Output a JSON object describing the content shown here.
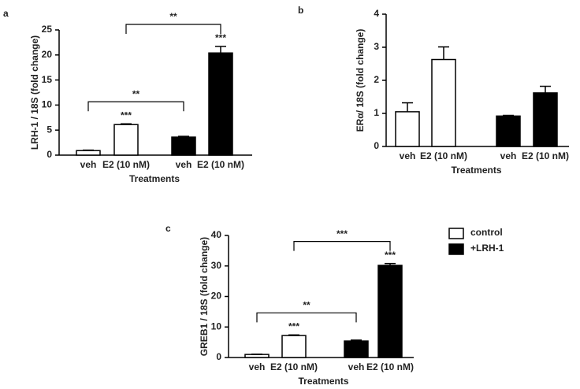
{
  "chart_data": [
    {
      "type": "bar",
      "label": "a",
      "ylabel": "LRH-1 / 18S (fold change)",
      "xlabel": "Treatments",
      "categories": [
        "veh",
        "E2 (10 nM)",
        "veh",
        "E2 (10 nM)"
      ],
      "series": [
        {
          "color": "#ffffff",
          "values": [
            0.9,
            6.1,
            null,
            null
          ],
          "errors": [
            0.1,
            0.15,
            null,
            null
          ]
        },
        {
          "color": "#000000",
          "values": [
            null,
            null,
            3.6,
            20.4
          ],
          "errors": [
            null,
            null,
            0.15,
            1.3
          ]
        }
      ],
      "ylim": [
        0,
        25
      ],
      "yticks": [
        0,
        5,
        10,
        15,
        20,
        25
      ],
      "stars": [
        null,
        "***",
        null,
        "***"
      ],
      "brackets": [
        {
          "bars": [
            1,
            3
          ],
          "label": "**"
        },
        {
          "bars": [
            0,
            2
          ],
          "label": "**"
        }
      ]
    },
    {
      "type": "bar",
      "label": "b",
      "ylabel": "ERα/ 18S (fold change)",
      "xlabel": "Treatments",
      "categories": [
        "veh",
        "E2 (10 nM)",
        "veh",
        "E2 (10 nM)"
      ],
      "series": [
        {
          "color": "#ffffff",
          "values": [
            1.05,
            2.63,
            null,
            null
          ],
          "errors": [
            0.27,
            0.38,
            null,
            null
          ]
        },
        {
          "color": "#000000",
          "values": [
            null,
            null,
            0.92,
            1.62
          ],
          "errors": [
            null,
            null,
            0.02,
            0.2
          ]
        }
      ],
      "ylim": [
        0,
        4
      ],
      "yticks": [
        0,
        1,
        2,
        3,
        4
      ]
    },
    {
      "type": "bar",
      "label": "c",
      "ylabel": "GREB1 / 18S (fold change)",
      "xlabel": "Treatments",
      "categories": [
        "veh",
        "E2 (10 nM)",
        "veh",
        "E2 (10 nM)"
      ],
      "series": [
        {
          "name": "control",
          "color": "#ffffff",
          "values": [
            1.0,
            7.2,
            null,
            null
          ],
          "errors": [
            0.1,
            0.2,
            null,
            null
          ]
        },
        {
          "name": "+LRH-1",
          "color": "#000000",
          "values": [
            null,
            null,
            5.4,
            30.2
          ],
          "errors": [
            null,
            null,
            0.3,
            0.6
          ]
        }
      ],
      "ylim": [
        0,
        40
      ],
      "yticks": [
        0,
        10,
        20,
        30,
        40
      ],
      "stars": [
        null,
        "***",
        null,
        "***"
      ],
      "brackets": [
        {
          "bars": [
            1,
            3
          ],
          "label": "***"
        },
        {
          "bars": [
            0,
            2
          ],
          "label": "**"
        }
      ]
    }
  ]
}
